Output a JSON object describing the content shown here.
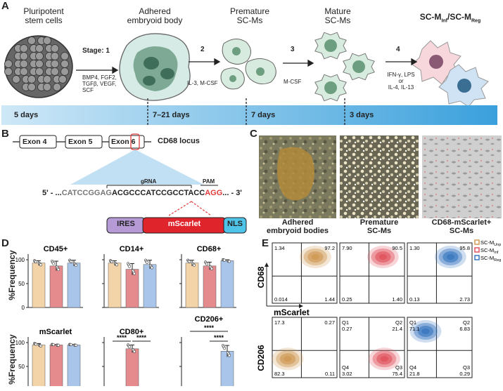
{
  "panelA": {
    "letter": "A",
    "stages": [
      {
        "title": "Pluripotent\nstem cells"
      },
      {
        "title": "Adhered\nembryoid body"
      },
      {
        "title": "Premature\nSC-Ms"
      },
      {
        "title": "Mature\nSC-Ms"
      },
      {
        "title": "SC-M",
        "sub1": "Inf",
        "mid": "/SC-M",
        "sub2": "Reg"
      }
    ],
    "steps": [
      {
        "num": "Stage: 1",
        "factors": "BMP4, FGF2,\nTGFβ, VEGF,\nSCF"
      },
      {
        "num": "2",
        "factors": "IL-3, M-CSF"
      },
      {
        "num": "3",
        "factors": "M-CSF"
      },
      {
        "num": "4",
        "factors": "IFN-γ, LPS\nor\nIL-4, IL-13"
      }
    ],
    "timeline": [
      "5 days",
      "7–21 days",
      "7 days",
      "3 days"
    ]
  },
  "panelB": {
    "letter": "B",
    "exons": [
      "Exon 4",
      "Exon 5",
      "Exon 6"
    ],
    "locus": "CD68 locus",
    "grna_label": "gRNA",
    "pam_label": "PAM",
    "seq_prefix": "5' - ...",
    "seq_gray": "CATCCGGAG",
    "seq_bold": "ACGCCCATCCGCCTACC",
    "seq_red": "AGG",
    "seq_suffix": "... - 3'",
    "cassette": [
      "IRES",
      "mScarlet",
      "NLS"
    ]
  },
  "panelC": {
    "letter": "C",
    "labels": [
      "Adhered\nembryoid bodies",
      "Premature\nSC-Ms",
      "CD68-mScarlet+\nSC-Ms"
    ]
  },
  "panelD": {
    "letter": "D",
    "ylabel": "%Frequency",
    "yticks": [
      "0",
      "50",
      "100"
    ],
    "plots": [
      {
        "title": "CD45+",
        "values": [
          93,
          87,
          93
        ],
        "err": [
          5,
          10,
          6
        ]
      },
      {
        "title": "CD14+",
        "values": [
          93,
          80,
          90
        ],
        "err": [
          5,
          12,
          9
        ]
      },
      {
        "title": "CD68+",
        "values": [
          93,
          87,
          98
        ],
        "err": [
          6,
          8,
          2
        ]
      },
      {
        "title": "mScarlet",
        "values": [
          95,
          95,
          95
        ],
        "err": [
          3,
          1,
          1
        ]
      },
      {
        "title": "CD80+",
        "values": [
          3,
          87,
          2
        ],
        "err": [
          2,
          8,
          2
        ],
        "sig": [
          "****",
          "****"
        ]
      },
      {
        "title": "CD206+",
        "values": [
          1,
          2,
          82
        ],
        "err": [
          1,
          1,
          12
        ],
        "sig": [
          "****",
          "****"
        ]
      }
    ]
  },
  "panelE": {
    "letter": "E",
    "legend": [
      {
        "prefix": "SC-M",
        "sub": "Unp",
        "color": "#d09a55"
      },
      {
        "prefix": "SC-M",
        "sub": "Inf",
        "color": "#e05560"
      },
      {
        "prefix": "SC-M",
        "sub": "Reg",
        "color": "#3a78c0"
      }
    ],
    "row1_ylabel": "CD68",
    "row1_xlabel": "mScarlet",
    "row2_ylabel": "CD206",
    "row1": [
      {
        "tl": "1.34",
        "tr": "97.2",
        "bl": "0.014",
        "br": "1.44"
      },
      {
        "tl": "7.90",
        "tr": "90.5",
        "bl": "0.25",
        "br": "1.40"
      },
      {
        "tl": "1.30",
        "tr": "95.8",
        "bl": "0.13",
        "br": "2.73"
      }
    ],
    "row2": [
      {
        "tl": "17.3",
        "tr": "0.27",
        "bl": "82.3",
        "br": "0.11"
      },
      {
        "tl": "Q1\n0.27",
        "tr": "Q2\n21.4",
        "bl": "Q4\n3.02",
        "br": "Q3\n75.4"
      },
      {
        "tl": "Q1\n71.1",
        "tr": "Q2\n6.83",
        "bl": "Q4\n21.8",
        "br": "Q3\n0.29"
      }
    ]
  },
  "colors": {
    "unp": "#f3d3a8",
    "inf": "#e58a8d",
    "reg": "#a9c6ea",
    "timeline_dark": "#3aa0dc",
    "timeline_light": "#cfe8f7"
  }
}
